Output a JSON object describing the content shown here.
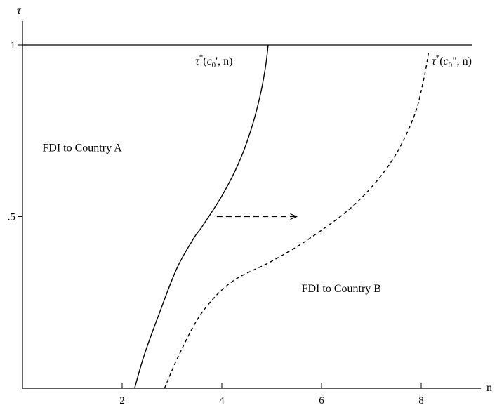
{
  "chart_data": {
    "type": "line",
    "xlabel": "n",
    "ylabel": "τ",
    "xlim": [
      -0.1,
      9.0
    ],
    "ylim": [
      0,
      1.08
    ],
    "x_ticks": [
      2,
      4,
      6,
      8
    ],
    "x_tick_labels": [
      "2",
      "4",
      "6",
      "8"
    ],
    "y_ticks": [
      0.5,
      1
    ],
    "y_tick_labels": [
      ".5",
      "1"
    ],
    "grid": false,
    "reference_lines": [
      {
        "axis": "y",
        "value": 1
      }
    ],
    "series": [
      {
        "name": "τ*(c0', n)",
        "label_parts": {
          "base": "τ",
          "sup": "*",
          "open": "(",
          "var": "c",
          "sub": "0",
          "prime": "'",
          "rest": ", n)"
        },
        "style": "solid",
        "x": [
          2.25,
          2.45,
          2.75,
          3.1,
          3.45,
          3.6,
          4.0,
          4.35,
          4.6,
          4.78,
          4.88,
          4.93
        ],
        "y": [
          0,
          0.1,
          0.22,
          0.35,
          0.44,
          0.47,
          0.56,
          0.66,
          0.76,
          0.86,
          0.94,
          1.0
        ]
      },
      {
        "name": "τ*(c0\", n)",
        "label_parts": {
          "base": "τ",
          "sup": "*",
          "open": "(",
          "var": "c",
          "sub": "0",
          "prime": "\"",
          "rest": ", n)"
        },
        "style": "dashed",
        "x": [
          2.85,
          3.15,
          3.6,
          4.2,
          5.0,
          5.8,
          6.7,
          7.4,
          7.85,
          8.05,
          8.15
        ],
        "y": [
          0,
          0.1,
          0.22,
          0.31,
          0.37,
          0.44,
          0.54,
          0.66,
          0.79,
          0.9,
          0.98
        ]
      }
    ],
    "annotations": [
      {
        "text": "FDI to Country A",
        "x": 0.4,
        "y": 0.69
      },
      {
        "text": "FDI to Country B",
        "x": 5.6,
        "y": 0.28
      },
      {
        "text": "",
        "type": "dashed-arrow",
        "from": [
          3.9,
          0.5
        ],
        "to": [
          5.5,
          0.5
        ]
      }
    ]
  }
}
